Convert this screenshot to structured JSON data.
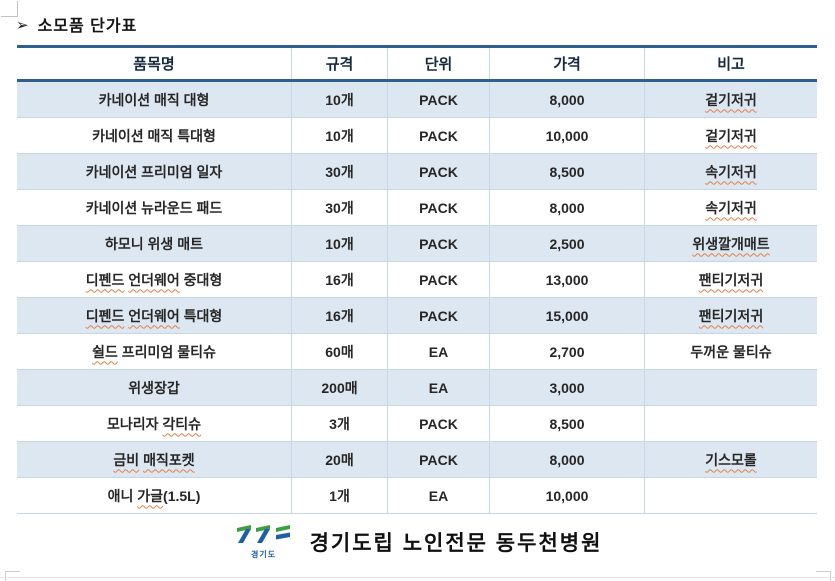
{
  "title": {
    "arrow": "➢",
    "text": "소모품 단가표"
  },
  "table": {
    "headers": [
      "품목명",
      "규격",
      "단위",
      "가격",
      "비고"
    ],
    "rows": [
      {
        "name": [
          {
            "t": "카네이션 매직 대형",
            "sp": false
          }
        ],
        "spec": "10개",
        "unit": "PACK",
        "price": "8,000",
        "remark": [
          {
            "t": "겉기저귀",
            "sp": true
          }
        ]
      },
      {
        "name": [
          {
            "t": "카네이션 매직 특대형",
            "sp": false
          }
        ],
        "spec": "10개",
        "unit": "PACK",
        "price": "10,000",
        "remark": [
          {
            "t": "겉기저귀",
            "sp": true
          }
        ]
      },
      {
        "name": [
          {
            "t": "카네이션 프리미엄 일자",
            "sp": false
          }
        ],
        "spec": "30개",
        "unit": "PACK",
        "price": "8,500",
        "remark": [
          {
            "t": "속기저귀",
            "sp": true
          }
        ]
      },
      {
        "name": [
          {
            "t": "카네이션 뉴라운드 패드",
            "sp": false
          }
        ],
        "spec": "30개",
        "unit": "PACK",
        "price": "8,000",
        "remark": [
          {
            "t": "속기저귀",
            "sp": true
          }
        ]
      },
      {
        "name": [
          {
            "t": "하모니 위생 매트",
            "sp": false
          }
        ],
        "spec": "10개",
        "unit": "PACK",
        "price": "2,500",
        "remark": [
          {
            "t": "위생깔개매트",
            "sp": true
          }
        ]
      },
      {
        "name": [
          {
            "t": "디펜드",
            "sp": true
          },
          {
            "t": " ",
            "sp": false
          },
          {
            "t": "언더웨어",
            "sp": true
          },
          {
            "t": " 중대형",
            "sp": false
          }
        ],
        "spec": "16개",
        "unit": "PACK",
        "price": "13,000",
        "remark": [
          {
            "t": "팬티기저귀",
            "sp": true
          }
        ]
      },
      {
        "name": [
          {
            "t": "디펜드",
            "sp": true
          },
          {
            "t": " ",
            "sp": false
          },
          {
            "t": "언더웨어",
            "sp": true
          },
          {
            "t": " 특대형",
            "sp": false
          }
        ],
        "spec": "16개",
        "unit": "PACK",
        "price": "15,000",
        "remark": [
          {
            "t": "팬티기저귀",
            "sp": true
          }
        ]
      },
      {
        "name": [
          {
            "t": "쉴드",
            "sp": true
          },
          {
            "t": " 프리미엄 물티슈",
            "sp": false
          }
        ],
        "spec": "60매",
        "unit": "EA",
        "price": "2,700",
        "remark": [
          {
            "t": "두꺼운 물티슈",
            "sp": false
          }
        ]
      },
      {
        "name": [
          {
            "t": "위생장갑",
            "sp": false
          }
        ],
        "spec": "200매",
        "unit": "EA",
        "price": "3,000",
        "remark": []
      },
      {
        "name": [
          {
            "t": "모나리자 ",
            "sp": false
          },
          {
            "t": "각티슈",
            "sp": true
          }
        ],
        "spec": "3개",
        "unit": "PACK",
        "price": "8,500",
        "remark": []
      },
      {
        "name": [
          {
            "t": "금비",
            "sp": true
          },
          {
            "t": " ",
            "sp": false
          },
          {
            "t": "매직포켓",
            "sp": true
          }
        ],
        "spec": "20매",
        "unit": "PACK",
        "price": "8,000",
        "remark": [
          {
            "t": "기스모롤",
            "sp": true
          }
        ]
      },
      {
        "name": [
          {
            "t": "애니 ",
            "sp": false
          },
          {
            "t": "가글",
            "sp": true
          },
          {
            "t": "(1.5L)",
            "sp": false
          }
        ],
        "spec": "1개",
        "unit": "EA",
        "price": "10,000",
        "remark": []
      }
    ]
  },
  "footer": {
    "logo_caption": "경기도",
    "hospital": "경기도립 노인전문 동두천병원"
  },
  "colors": {
    "navy": "#2e5f8f",
    "row_alt": "#dde7f2",
    "grid": "#c9d6e6",
    "squiggle": "#e07f45",
    "logo_green": "#3ba13f",
    "logo_blue": "#1e5ea8"
  }
}
